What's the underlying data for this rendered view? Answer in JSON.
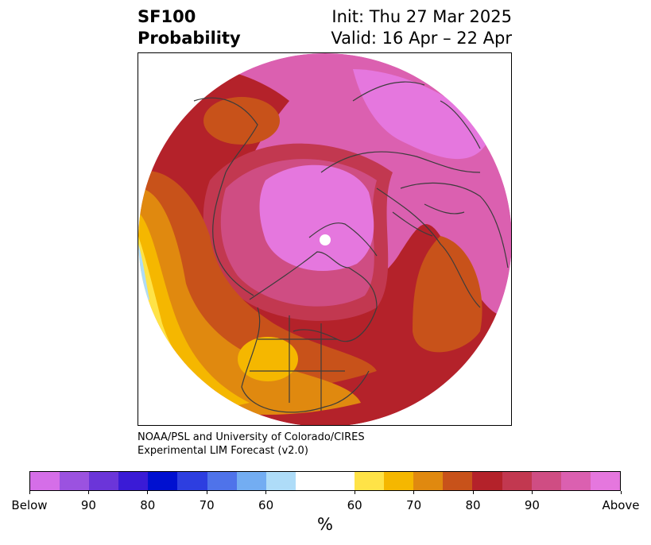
{
  "title": {
    "left_line1": "SF100",
    "left_line2": "Probability",
    "right_line1": "Init: Thu 27 Mar 2025",
    "right_line2": "Valid: 16 Apr – 22 Apr"
  },
  "credit": {
    "line1": "NOAA/PSL and University of Colorado/CIRES",
    "line2": "Experimental LIM Forecast (v2.0)"
  },
  "colorbar": {
    "colors": [
      "#d56ee8",
      "#9b52e0",
      "#6b35d9",
      "#3a1bd6",
      "#0010d0",
      "#2d3ee0",
      "#4f73ea",
      "#73adf2",
      "#aedcf8",
      "#ffffff",
      "#ffe347",
      "#f5b700",
      "#e0890f",
      "#c8521a",
      "#b4222a",
      "#c23850",
      "#cf4d83",
      "#db60b0",
      "#e577de"
    ],
    "tick_labels": [
      "Below",
      "90",
      "80",
      "70",
      "60",
      "60",
      "70",
      "80",
      "90",
      "Above"
    ],
    "unit": "%"
  },
  "map": {
    "projection": "north-polar-stereographic",
    "region": "Northern Hemisphere"
  }
}
